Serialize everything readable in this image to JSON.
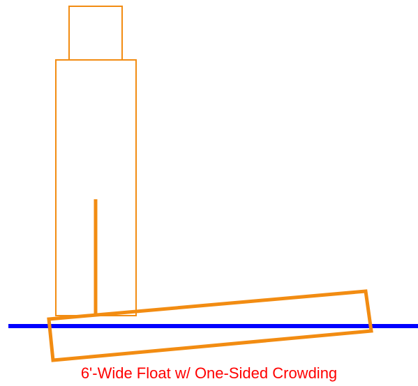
{
  "caption": "6'-Wide Float w/ One-Sided Crowding",
  "colors": {
    "outline": "#f28c12",
    "waterline": "#0000ff",
    "caption": "#ff0000",
    "background": "#ffffff"
  }
}
